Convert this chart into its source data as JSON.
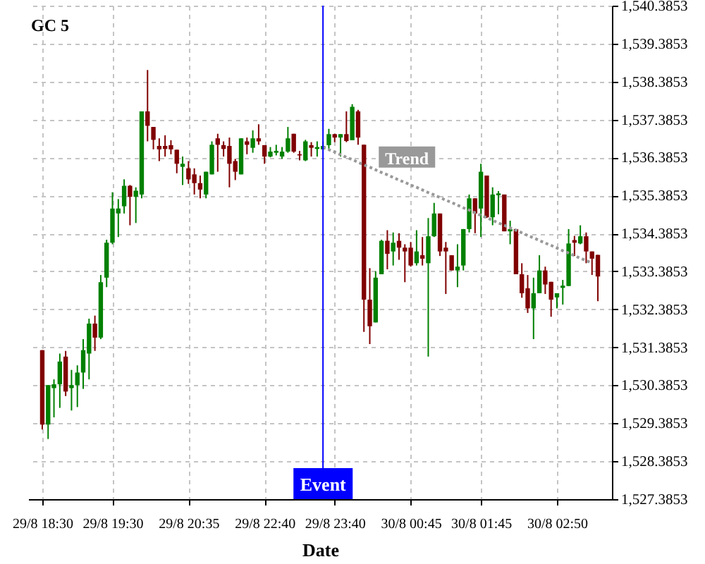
{
  "chart_data": {
    "type": "candlestick",
    "title": "GC 5",
    "xlabel": "Date",
    "categories": [
      "29/8 18:30",
      null,
      null,
      null,
      null,
      null,
      null,
      null,
      null,
      null,
      null,
      null,
      "29/8 19:30",
      null,
      null,
      null,
      null,
      null,
      null,
      null,
      null,
      null,
      null,
      null,
      null,
      "29/8 20:35",
      null,
      null,
      null,
      null,
      null,
      null,
      null,
      null,
      null,
      null,
      null,
      null,
      "29/8 22:40",
      null,
      null,
      null,
      null,
      null,
      null,
      null,
      null,
      null,
      null,
      null,
      "29/8 23:40",
      null,
      null,
      null,
      null,
      null,
      null,
      null,
      null,
      null,
      null,
      null,
      null,
      "30/8 00:45",
      null,
      null,
      null,
      null,
      null,
      null,
      null,
      null,
      null,
      null,
      null,
      "30/8 01:45",
      null,
      null,
      null,
      null,
      null,
      null,
      null,
      null,
      null,
      null,
      null,
      null,
      "30/8 02:50",
      null,
      null,
      null,
      null,
      null,
      null,
      null
    ],
    "ohlc": [
      [
        1531.31,
        1531.31,
        1529.22,
        1529.35
      ],
      [
        1529.35,
        1530.39,
        1528.97,
        1530.39
      ],
      [
        1530.31,
        1530.54,
        1529.54,
        1530.41
      ],
      [
        1530.41,
        1531.22,
        1529.79,
        1531.01
      ],
      [
        1531.14,
        1531.29,
        1530.1,
        1530.22
      ],
      [
        1530.31,
        1530.79,
        1529.72,
        1530.39
      ],
      [
        1530.39,
        1530.91,
        1529.81,
        1530.72
      ],
      [
        1530.72,
        1531.6,
        1530.29,
        1531.31
      ],
      [
        1531.22,
        1532.14,
        1530.54,
        1532.01
      ],
      [
        1532.01,
        1532.22,
        1531.29,
        1531.64
      ],
      [
        1531.64,
        1533.29,
        1531.6,
        1533.1
      ],
      [
        1533.22,
        1534.22,
        1532.97,
        1534.14
      ],
      [
        1534.14,
        1535.47,
        1534.1,
        1535.04
      ],
      [
        1534.91,
        1535.29,
        1534.29,
        1535.04
      ],
      [
        1535.1,
        1535.81,
        1534.91,
        1535.64
      ],
      [
        1535.64,
        1535.66,
        1534.6,
        1535.35
      ],
      [
        1535.35,
        1535.6,
        1534.66,
        1535.51
      ],
      [
        1535.41,
        1537.6,
        1535.31,
        1537.6
      ],
      [
        1537.6,
        1538.69,
        1536.81,
        1537.22
      ],
      [
        1537.19,
        1537.19,
        1536.6,
        1536.85
      ],
      [
        1536.69,
        1536.89,
        1536.29,
        1536.6
      ],
      [
        1536.69,
        1536.97,
        1536.41,
        1536.61
      ],
      [
        1536.71,
        1536.84,
        1536.47,
        1536.6
      ],
      [
        1536.59,
        1536.59,
        1535.97,
        1536.22
      ],
      [
        1536.14,
        1536.41,
        1535.66,
        1536.22
      ],
      [
        1536.1,
        1536.29,
        1535.69,
        1535.81
      ],
      [
        1535.94,
        1536.1,
        1535.41,
        1535.71
      ],
      [
        1535.71,
        1535.91,
        1535.31,
        1535.54
      ],
      [
        1535.41,
        1536.01,
        1535.31,
        1536.01
      ],
      [
        1535.94,
        1536.81,
        1535.94,
        1536.72
      ],
      [
        1536.89,
        1537.01,
        1536.01,
        1536.72
      ],
      [
        1536.71,
        1536.81,
        1536.41,
        1536.61
      ],
      [
        1536.69,
        1536.91,
        1535.6,
        1536.22
      ],
      [
        1536.29,
        1536.35,
        1535.79,
        1536.01
      ],
      [
        1535.94,
        1536.89,
        1535.94,
        1536.89
      ],
      [
        1536.81,
        1536.91,
        1536.47,
        1536.72
      ],
      [
        1536.64,
        1537.1,
        1536.51,
        1536.89
      ],
      [
        1536.89,
        1537.26,
        1536.72,
        1536.81
      ],
      [
        1536.71,
        1536.71,
        1536.22,
        1536.41
      ],
      [
        1536.41,
        1536.66,
        1536.39,
        1536.54
      ],
      [
        1536.51,
        1536.72,
        1536.44,
        1536.56
      ],
      [
        1536.41,
        1536.66,
        1536.35,
        1536.54
      ],
      [
        1536.54,
        1537.19,
        1536.51,
        1536.89
      ],
      [
        1537.01,
        1537.01,
        1536.51,
        1536.54
      ],
      [
        1536.47,
        1536.56,
        1536.31,
        1536.44
      ],
      [
        1536.31,
        1536.85,
        1536.29,
        1536.81
      ],
      [
        1536.71,
        1536.79,
        1536.41,
        1536.64
      ],
      [
        1536.61,
        1536.81,
        1536.41,
        1536.66
      ],
      [
        1536.6,
        1536.81,
        1536.6,
        1536.69
      ],
      [
        1536.71,
        1537.14,
        1536.6,
        1537.0
      ],
      [
        1537.0,
        1537.01,
        1536.79,
        1536.91
      ],
      [
        1536.91,
        1537.0,
        1536.41,
        1537.0
      ],
      [
        1537.0,
        1537.6,
        1536.79,
        1536.82
      ],
      [
        1536.84,
        1537.79,
        1536.84,
        1537.72
      ],
      [
        1537.6,
        1537.64,
        1536.72,
        1536.91
      ],
      [
        1536.72,
        1536.72,
        1531.79,
        1532.64
      ],
      [
        1532.64,
        1533.47,
        1531.47,
        1531.94
      ],
      [
        1532.04,
        1533.39,
        1532.04,
        1533.22
      ],
      [
        1533.31,
        1534.22,
        1533.31,
        1534.19
      ],
      [
        1534.19,
        1534.47,
        1533.44,
        1533.85
      ],
      [
        1533.91,
        1534.41,
        1533.54,
        1534.14
      ],
      [
        1534.19,
        1534.39,
        1533.69,
        1534.01
      ],
      [
        1534.01,
        1534.1,
        1533.1,
        1533.91
      ],
      [
        1534.01,
        1534.16,
        1533.51,
        1533.54
      ],
      [
        1533.6,
        1534.47,
        1533.54,
        1533.91
      ],
      [
        1533.81,
        1534.29,
        1533.54,
        1533.72
      ],
      [
        1533.6,
        1534.79,
        1531.14,
        1534.31
      ],
      [
        1534.31,
        1535.19,
        1534.29,
        1534.91
      ],
      [
        1534.91,
        1534.91,
        1533.79,
        1533.91
      ],
      [
        1534.01,
        1534.16,
        1532.79,
        1533.91
      ],
      [
        1533.81,
        1533.81,
        1533.41,
        1533.41
      ],
      [
        1533.41,
        1534.1,
        1532.97,
        1533.51
      ],
      [
        1533.54,
        1534.5,
        1533.41,
        1534.5
      ],
      [
        1534.5,
        1535.41,
        1534.41,
        1535.31
      ],
      [
        1535.31,
        1535.31,
        1534.39,
        1534.91
      ],
      [
        1535.04,
        1536.22,
        1534.29,
        1536.01
      ],
      [
        1535.91,
        1535.91,
        1534.79,
        1534.81
      ],
      [
        1534.81,
        1535.6,
        1534.6,
        1535.41
      ],
      [
        1535.39,
        1535.5,
        1534.89,
        1535.44
      ],
      [
        1535.41,
        1535.41,
        1534.44,
        1534.44
      ],
      [
        1534.44,
        1534.72,
        1534.1,
        1534.5
      ],
      [
        1534.5,
        1534.5,
        1533.31,
        1533.31
      ],
      [
        1533.31,
        1533.6,
        1532.69,
        1532.81
      ],
      [
        1532.94,
        1533.29,
        1532.29,
        1532.41
      ],
      [
        1532.41,
        1533.22,
        1531.6,
        1532.81
      ],
      [
        1532.81,
        1533.81,
        1532.81,
        1533.41
      ],
      [
        1533.41,
        1533.51,
        1532.79,
        1533.04
      ],
      [
        1533.11,
        1533.11,
        1532.19,
        1532.64
      ],
      [
        1532.7,
        1532.81,
        1532.41,
        1532.81
      ],
      [
        1532.95,
        1533.16,
        1532.51,
        1533.01
      ],
      [
        1533.0,
        1534.5,
        1533.0,
        1534.12
      ],
      [
        1534.21,
        1534.32,
        1533.79,
        1534.14
      ],
      [
        1534.12,
        1534.6,
        1534.1,
        1534.31
      ],
      [
        1534.31,
        1534.41,
        1533.6,
        1533.91
      ],
      [
        1533.91,
        1533.91,
        1533.29,
        1533.72
      ],
      [
        1533.82,
        1533.82,
        1532.6,
        1533.25
      ]
    ],
    "colors": [
      "#800000",
      "#008000",
      "#008000",
      "#008000",
      "#800000",
      "#008000",
      "#008000",
      "#008000",
      "#008000",
      "#800000",
      "#008000",
      "#008000",
      "#008000",
      "#008000",
      "#008000",
      "#800000",
      "#008000",
      "#008000",
      "#800000",
      "#800000",
      "#800000",
      "#800000",
      "#800000",
      "#800000",
      "#008000",
      "#800000",
      "#800000",
      "#800000",
      "#008000",
      "#008000",
      "#800000",
      "#800000",
      "#800000",
      "#800000",
      "#008000",
      "#800000",
      "#008000",
      "#800000",
      "#800000",
      "#008000",
      "#008000",
      "#008000",
      "#008000",
      "#800000",
      "#800000",
      "#008000",
      "#800000",
      "#008000",
      "#008000",
      "#008000",
      "#800000",
      "#008000",
      "#800000",
      "#008000",
      "#800000",
      "#800000",
      "#800000",
      "#008000",
      "#008000",
      "#800000",
      "#008000",
      "#800000",
      "#800000",
      "#800000",
      "#008000",
      "#800000",
      "#008000",
      "#008000",
      "#800000",
      "#800000",
      "#800000",
      "#008000",
      "#008000",
      "#008000",
      "#800000",
      "#008000",
      "#800000",
      "#008000",
      "#008000",
      "#800000",
      "#008000",
      "#800000",
      "#800000",
      "#800000",
      "#008000",
      "#008000",
      "#800000",
      "#800000",
      "#008000",
      "#008000",
      "#008000",
      "#800000",
      "#008000",
      "#800000",
      "#800000",
      "#800000"
    ],
    "series": [
      {
        "type": "line",
        "name": "Trend",
        "color": "#999999",
        "line_style": "dotted",
        "values": [
          null,
          null,
          null,
          null,
          null,
          null,
          null,
          null,
          null,
          null,
          null,
          null,
          null,
          null,
          null,
          null,
          null,
          null,
          null,
          null,
          null,
          null,
          null,
          null,
          null,
          null,
          null,
          null,
          null,
          null,
          null,
          null,
          null,
          null,
          null,
          null,
          null,
          null,
          null,
          null,
          null,
          null,
          null,
          null,
          null,
          null,
          null,
          null,
          1536.66,
          1536.59,
          1536.53,
          1536.46,
          1536.39,
          1536.33,
          1536.26,
          1536.19,
          1536.13,
          1536.06,
          1535.99,
          1535.93,
          1535.86,
          1535.79,
          1535.73,
          1535.66,
          1535.6,
          1535.53,
          1535.46,
          1535.4,
          1535.33,
          1535.26,
          1535.2,
          1535.13,
          1535.06,
          1535.0,
          1534.93,
          1534.86,
          1534.8,
          1534.73,
          1534.66,
          1534.6,
          1534.53,
          1534.47,
          1534.4,
          1534.33,
          1534.27,
          1534.2,
          1534.13,
          1534.07,
          1534.0,
          1533.93,
          1533.87,
          1533.8,
          1533.73,
          1533.67,
          1533.6,
          null
        ]
      }
    ],
    "ylim": [
      1527.3853,
      1540.3853
    ],
    "yticks": [
      {
        "value": 1527.3853,
        "label": "1,527.3853"
      },
      {
        "value": 1528.3853,
        "label": "1,528.3853"
      },
      {
        "value": 1529.3853,
        "label": "1,529.3853"
      },
      {
        "value": 1530.3853,
        "label": "1,530.3853"
      },
      {
        "value": 1531.3853,
        "label": "1,531.3853"
      },
      {
        "value": 1532.3853,
        "label": "1,532.3853"
      },
      {
        "value": 1533.3853,
        "label": "1,533.3853"
      },
      {
        "value": 1534.3853,
        "label": "1,534.3853"
      },
      {
        "value": 1535.3853,
        "label": "1,535.3853"
      },
      {
        "value": 1536.3853,
        "label": "1,536.3853"
      },
      {
        "value": 1537.3853,
        "label": "1,537.3853"
      },
      {
        "value": 1538.3853,
        "label": "1,538.3853"
      },
      {
        "value": 1539.3853,
        "label": "1,539.3853"
      },
      {
        "value": 1540.3853,
        "label": "1,540.3853"
      }
    ],
    "grid": true,
    "annotations": [
      "Event"
    ]
  }
}
